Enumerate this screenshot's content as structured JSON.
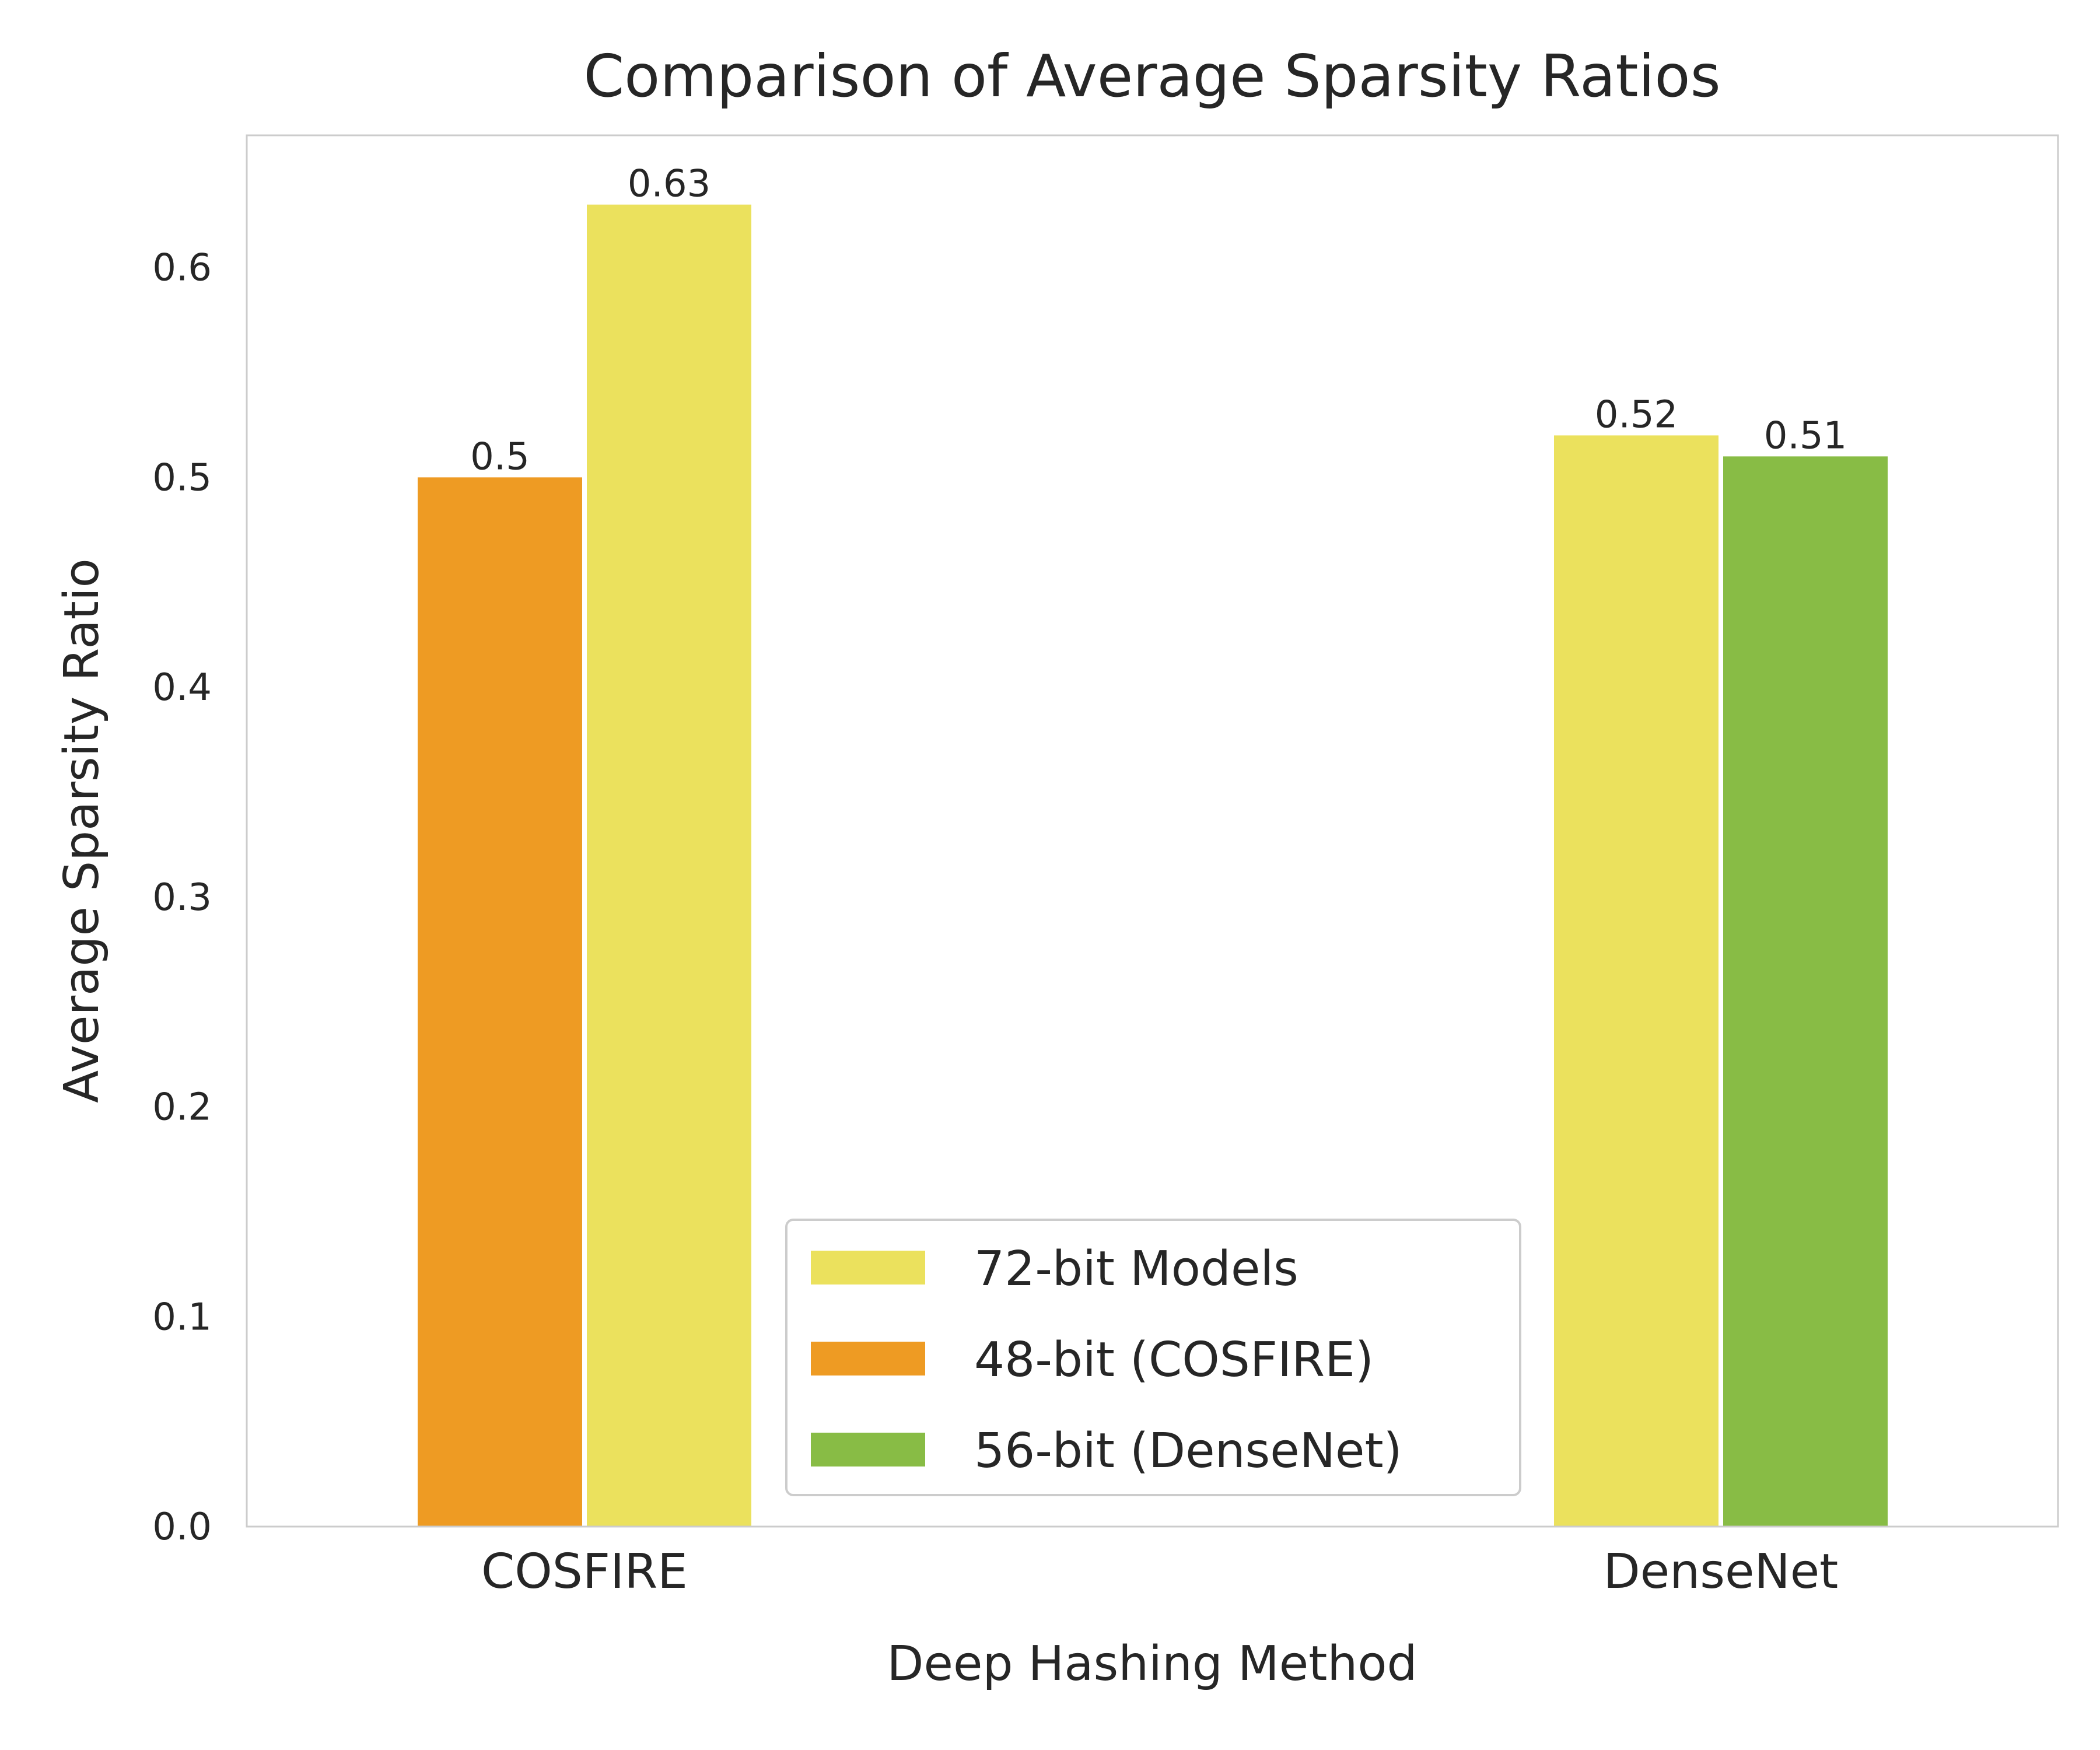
{
  "chart_data": {
    "type": "bar",
    "title": "Comparison of Average Sparsity Ratios",
    "xlabel": "Deep Hashing Method",
    "ylabel": "Average Sparsity Ratio",
    "categories": [
      "COSFIRE",
      "DenseNet"
    ],
    "ylim": [
      0,
      0.663
    ],
    "yticks": [
      "0.0",
      "0.1",
      "0.2",
      "0.3",
      "0.4",
      "0.5",
      "0.6"
    ],
    "grid": false,
    "legend_position": "lower center",
    "bars": [
      {
        "category": "COSFIRE",
        "series": "48-bit (COSFIRE)",
        "value": 0.5,
        "label": "0.5",
        "slot": -1
      },
      {
        "category": "COSFIRE",
        "series": "72-bit Models",
        "value": 0.63,
        "label": "0.63",
        "slot": 0
      },
      {
        "category": "DenseNet",
        "series": "72-bit Models",
        "value": 0.52,
        "label": "0.52",
        "slot": -1
      },
      {
        "category": "DenseNet",
        "series": "56-bit (DenseNet)",
        "value": 0.51,
        "label": "0.51",
        "slot": 0
      }
    ],
    "legend": [
      {
        "name": "72-bit Models",
        "color": "#ebe15d"
      },
      {
        "name": "48-bit (COSFIRE)",
        "color": "#ee9b23"
      },
      {
        "name": "56-bit (DenseNet)",
        "color": "#88bc45"
      }
    ]
  }
}
